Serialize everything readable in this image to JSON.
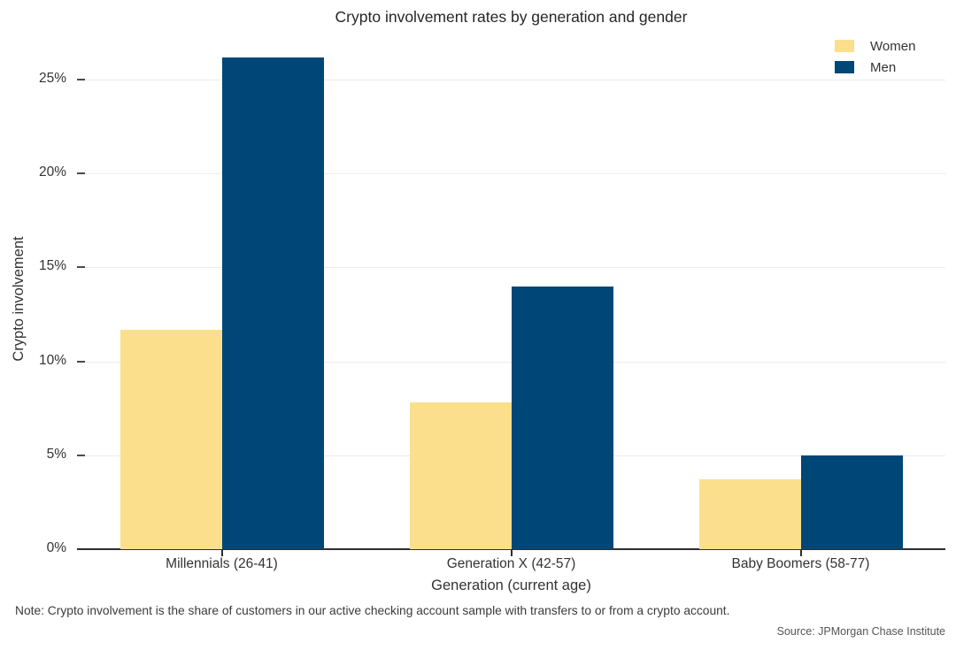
{
  "title": "Crypto involvement rates by generation and gender",
  "legend": {
    "items": [
      {
        "label": "Women",
        "color": "#FBDF8C"
      },
      {
        "label": "Men",
        "color": "#004677"
      }
    ]
  },
  "chart_data": {
    "type": "bar",
    "title": "Crypto involvement rates by generation and gender",
    "categories": [
      "Millennials (26-41)",
      "Generation X (42-57)",
      "Baby Boomers (58-77)"
    ],
    "series": [
      {
        "name": "Women",
        "color": "#FBDF8C",
        "values": [
          11.7,
          7.8,
          3.7
        ]
      },
      {
        "name": "Men",
        "color": "#004677",
        "values": [
          26.2,
          14.0,
          5.0
        ]
      }
    ],
    "xlabel": "Generation (current age)",
    "ylabel": "Crypto involvement",
    "ylim": [
      0,
      27.4
    ],
    "yticks": [
      0,
      5,
      10,
      15,
      20,
      25
    ],
    "ytick_labels": [
      "0%",
      "5%",
      "10%",
      "15%",
      "20%",
      "25%"
    ],
    "grid": "horizontal",
    "legend_position": "top-right",
    "unit": "percent"
  },
  "footer": {
    "note": "Note: Crypto involvement is the share of customers in our active checking account sample with transfers to or from a crypto account.",
    "source": "Source: JPMorgan Chase Institute"
  }
}
